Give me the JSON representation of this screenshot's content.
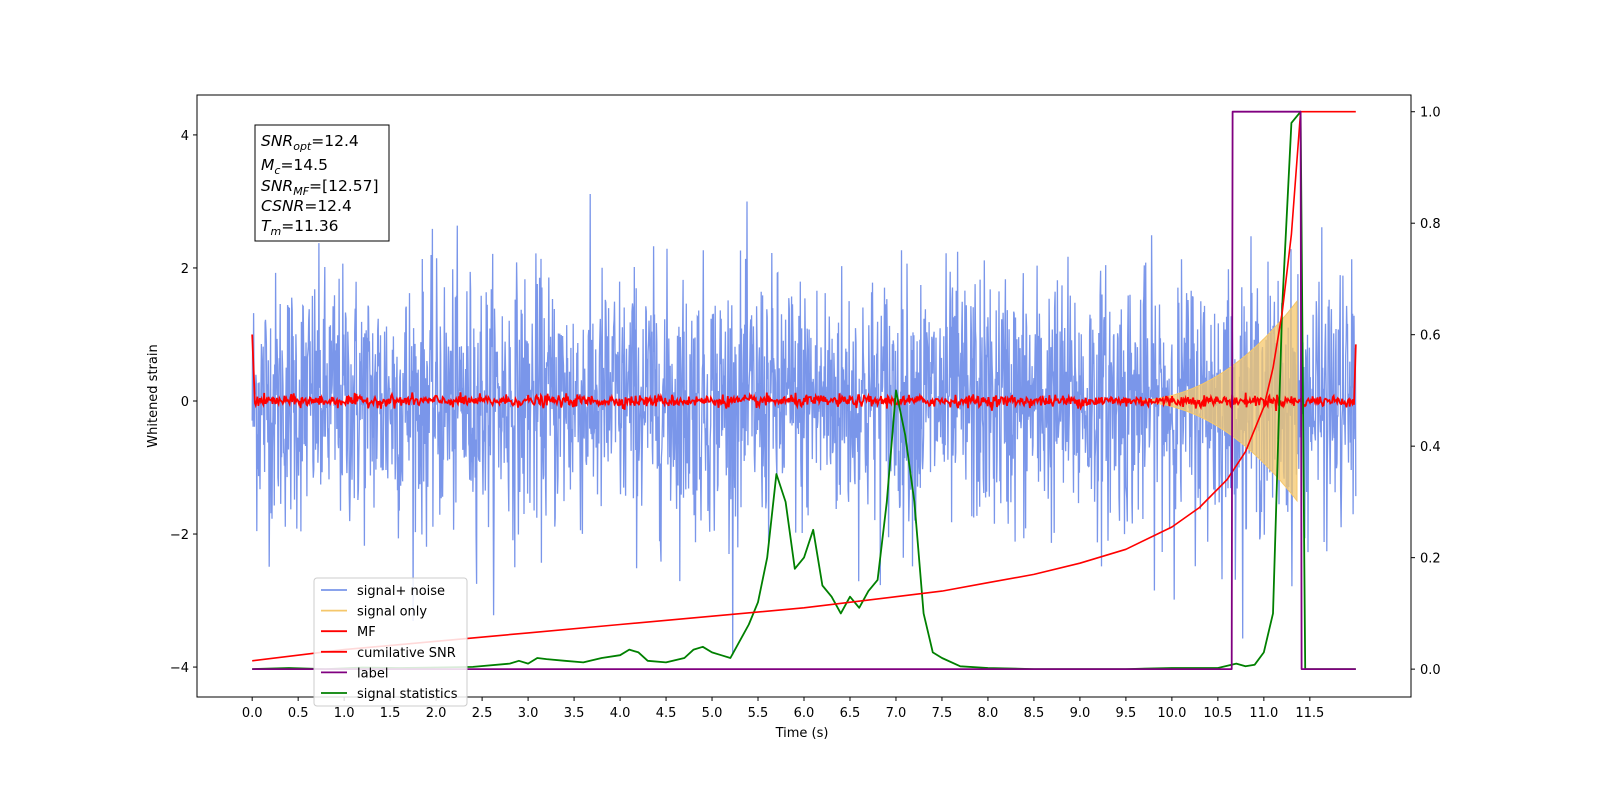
{
  "chart_data": {
    "type": "line",
    "xlabel": "Time (s)",
    "ylabel": "Whitened strain",
    "xlim": [
      -0.6,
      12.6
    ],
    "ylim": [
      -4.45,
      4.6
    ],
    "y2lim": [
      -0.05,
      1.03
    ],
    "x_ticks": [
      "0.0",
      "0.5",
      "1.0",
      "1.5",
      "2.0",
      "2.5",
      "3.0",
      "3.5",
      "4.0",
      "4.5",
      "5.0",
      "5.5",
      "6.0",
      "6.5",
      "7.0",
      "7.5",
      "8.0",
      "8.5",
      "9.0",
      "9.5",
      "10.0",
      "10.5",
      "11.0",
      "11.5"
    ],
    "y_ticks": [
      "4",
      "2",
      "0",
      "−2",
      "−4"
    ],
    "y2_ticks": [
      "1.0",
      "0.8",
      "0.6",
      "0.4",
      "0.2",
      "0.0"
    ],
    "info_box": {
      "snr_opt": "=12.4",
      "mc": "=14.5",
      "snr_mf": "=[12.57]",
      "csnr": "=12.4",
      "tm": "=11.36"
    },
    "legend": [
      {
        "name": "signal+ noise",
        "color": "#4169E1"
      },
      {
        "name": "signal only",
        "color": "#F5C76B"
      },
      {
        "name": "MF",
        "color": "#FF0000"
      },
      {
        "name": "cumilative SNR",
        "color": "#FF0000"
      },
      {
        "name": "label",
        "color": "#800080"
      },
      {
        "name": "signal statistics",
        "color": "#008000"
      }
    ],
    "series": [
      {
        "name": "signal+ noise",
        "axis": "left",
        "color": "#4169E1",
        "amplitude_std": 0.95,
        "x_range": [
          0.0,
          12.0
        ]
      },
      {
        "name": "signal only",
        "axis": "left",
        "color": "#F5C76B",
        "chirp_peak_time": 11.36,
        "peak_amplitude": 1.5
      },
      {
        "name": "MF",
        "axis": "left",
        "color": "#FF0000",
        "baseline": 0.0,
        "noise_amplitude": 0.08
      },
      {
        "name": "cumilative SNR",
        "axis": "right",
        "color": "#FF0000",
        "x": [
          0.0,
          1.0,
          2.0,
          3.0,
          4.0,
          5.0,
          6.0,
          7.0,
          7.5,
          8.0,
          8.5,
          9.0,
          9.5,
          10.0,
          10.3,
          10.6,
          10.8,
          11.0,
          11.1,
          11.2,
          11.3,
          11.4,
          12.0
        ],
        "y": [
          0.015,
          0.035,
          0.05,
          0.065,
          0.08,
          0.095,
          0.11,
          0.13,
          0.14,
          0.155,
          0.17,
          0.19,
          0.215,
          0.255,
          0.29,
          0.34,
          0.39,
          0.47,
          0.54,
          0.64,
          0.78,
          1.0,
          1.0
        ]
      },
      {
        "name": "label",
        "axis": "right",
        "color": "#800080",
        "x": [
          0.0,
          10.65,
          10.66,
          11.4,
          11.41,
          12.0
        ],
        "y": [
          0.0,
          0.0,
          1.0,
          1.0,
          0.0,
          0.0
        ]
      },
      {
        "name": "signal statistics",
        "axis": "right",
        "color": "#008000",
        "x": [
          0.0,
          0.4,
          0.8,
          1.2,
          1.6,
          2.0,
          2.4,
          2.8,
          2.9,
          3.0,
          3.1,
          3.2,
          3.4,
          3.6,
          3.8,
          4.0,
          4.1,
          4.2,
          4.3,
          4.5,
          4.7,
          4.8,
          4.9,
          5.0,
          5.1,
          5.2,
          5.4,
          5.5,
          5.6,
          5.7,
          5.8,
          5.9,
          6.0,
          6.1,
          6.2,
          6.3,
          6.4,
          6.5,
          6.6,
          6.7,
          6.8,
          6.9,
          7.0,
          7.1,
          7.2,
          7.3,
          7.4,
          7.5,
          7.7,
          8.0,
          8.5,
          9.0,
          9.5,
          10.0,
          10.5,
          10.7,
          10.8,
          10.9,
          11.0,
          11.1,
          11.2,
          11.3,
          11.4,
          11.45,
          12.0
        ],
        "y": [
          0.0,
          0.002,
          0.0,
          0.003,
          0.002,
          0.003,
          0.004,
          0.01,
          0.015,
          0.01,
          0.02,
          0.018,
          0.015,
          0.012,
          0.02,
          0.025,
          0.035,
          0.03,
          0.015,
          0.012,
          0.02,
          0.035,
          0.04,
          0.03,
          0.025,
          0.02,
          0.08,
          0.12,
          0.2,
          0.35,
          0.3,
          0.18,
          0.2,
          0.25,
          0.15,
          0.13,
          0.1,
          0.13,
          0.11,
          0.14,
          0.16,
          0.3,
          0.5,
          0.42,
          0.3,
          0.1,
          0.03,
          0.02,
          0.005,
          0.002,
          0.0,
          0.0,
          0.0,
          0.002,
          0.002,
          0.01,
          0.005,
          0.008,
          0.03,
          0.1,
          0.65,
          0.98,
          1.0,
          0.0,
          0.0
        ]
      }
    ]
  }
}
